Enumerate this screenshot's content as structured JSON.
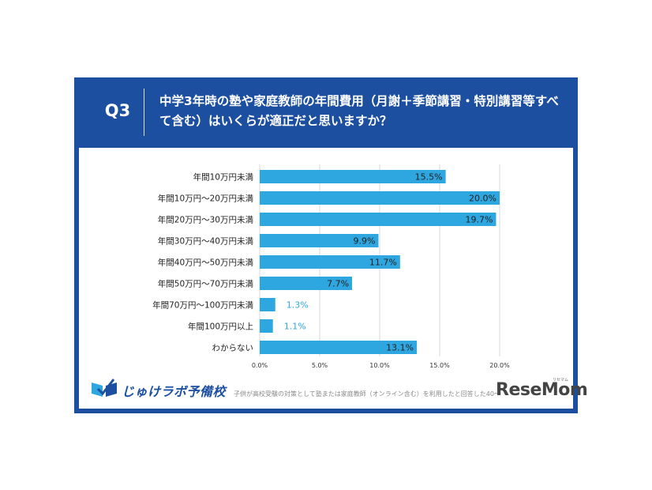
{
  "header": {
    "q_label": "Q3",
    "question": "中学3年時の塾や家庭教師の年間費用（月謝＋季節講習・特別講習等すべて含む）はいくらが適正だと思いますか？"
  },
  "chart_data": {
    "type": "bar",
    "orientation": "horizontal",
    "categories": [
      "年間10万円未満",
      "年間10万円〜20万円未満",
      "年間20万円〜30万円未満",
      "年間30万円〜40万円未満",
      "年間40万円〜50万円未満",
      "年間50万円〜70万円未満",
      "年間70万円〜100万円未満",
      "年間100万円以上",
      "わからない"
    ],
    "values": [
      15.5,
      20.0,
      19.7,
      9.9,
      11.7,
      7.7,
      1.3,
      1.1,
      13.1
    ],
    "value_labels": [
      "15.5%",
      "20.0%",
      "19.7%",
      "9.9%",
      "11.7%",
      "7.7%",
      "1.3%",
      "1.1%",
      "13.1%"
    ],
    "xlim": [
      0,
      20
    ],
    "x_ticks": [
      "0.0%",
      "5.0%",
      "10.0%",
      "15.0%",
      "20.0%"
    ],
    "grid": true,
    "bar_color": "#2ea7e0"
  },
  "footer": {
    "logo_text": "じゅけラボ予備校",
    "note": "子供が高校受験の対策として塾または家庭教師（オンライン含む）を利用したと回答した40〜",
    "brand": "ReseMom",
    "brand_sub": "リセマム"
  }
}
